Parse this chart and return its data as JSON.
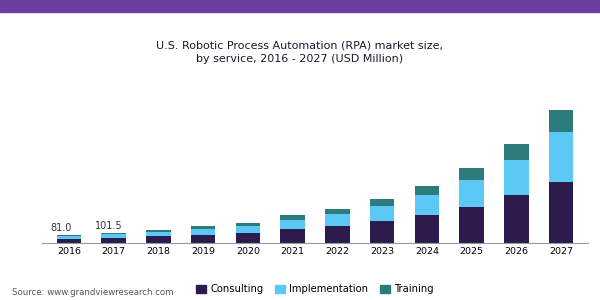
{
  "title": "U.S. Robotic Process Automation (RPA) market size,\nby service, 2016 - 2027 (USD Million)",
  "years": [
    2016,
    2017,
    2018,
    2019,
    2020,
    2021,
    2022,
    2023,
    2024,
    2025,
    2026,
    2027
  ],
  "consulting": [
    40,
    52,
    65,
    82,
    100,
    135,
    165,
    215,
    280,
    360,
    470,
    600
  ],
  "implementation": [
    28,
    35,
    45,
    57,
    70,
    95,
    118,
    152,
    195,
    260,
    350,
    490
  ],
  "training": [
    13,
    14.5,
    20,
    26,
    32,
    42,
    52,
    68,
    88,
    118,
    158,
    220
  ],
  "annotations": {
    "2016": "81.0",
    "2017": "101.5"
  },
  "colors": {
    "consulting": "#2d1b4e",
    "implementation": "#5bc8f5",
    "training": "#2d7b7b"
  },
  "legend_labels": [
    "Consulting",
    "Implementation",
    "Training"
  ],
  "source": "Source: www.grandviewresearch.com",
  "title_color": "#1a1a2e",
  "header_bg": "#ede8f5",
  "header_stripe_color": "#6b3fa0",
  "ylim": [
    0,
    1450
  ],
  "bar_width": 0.55
}
